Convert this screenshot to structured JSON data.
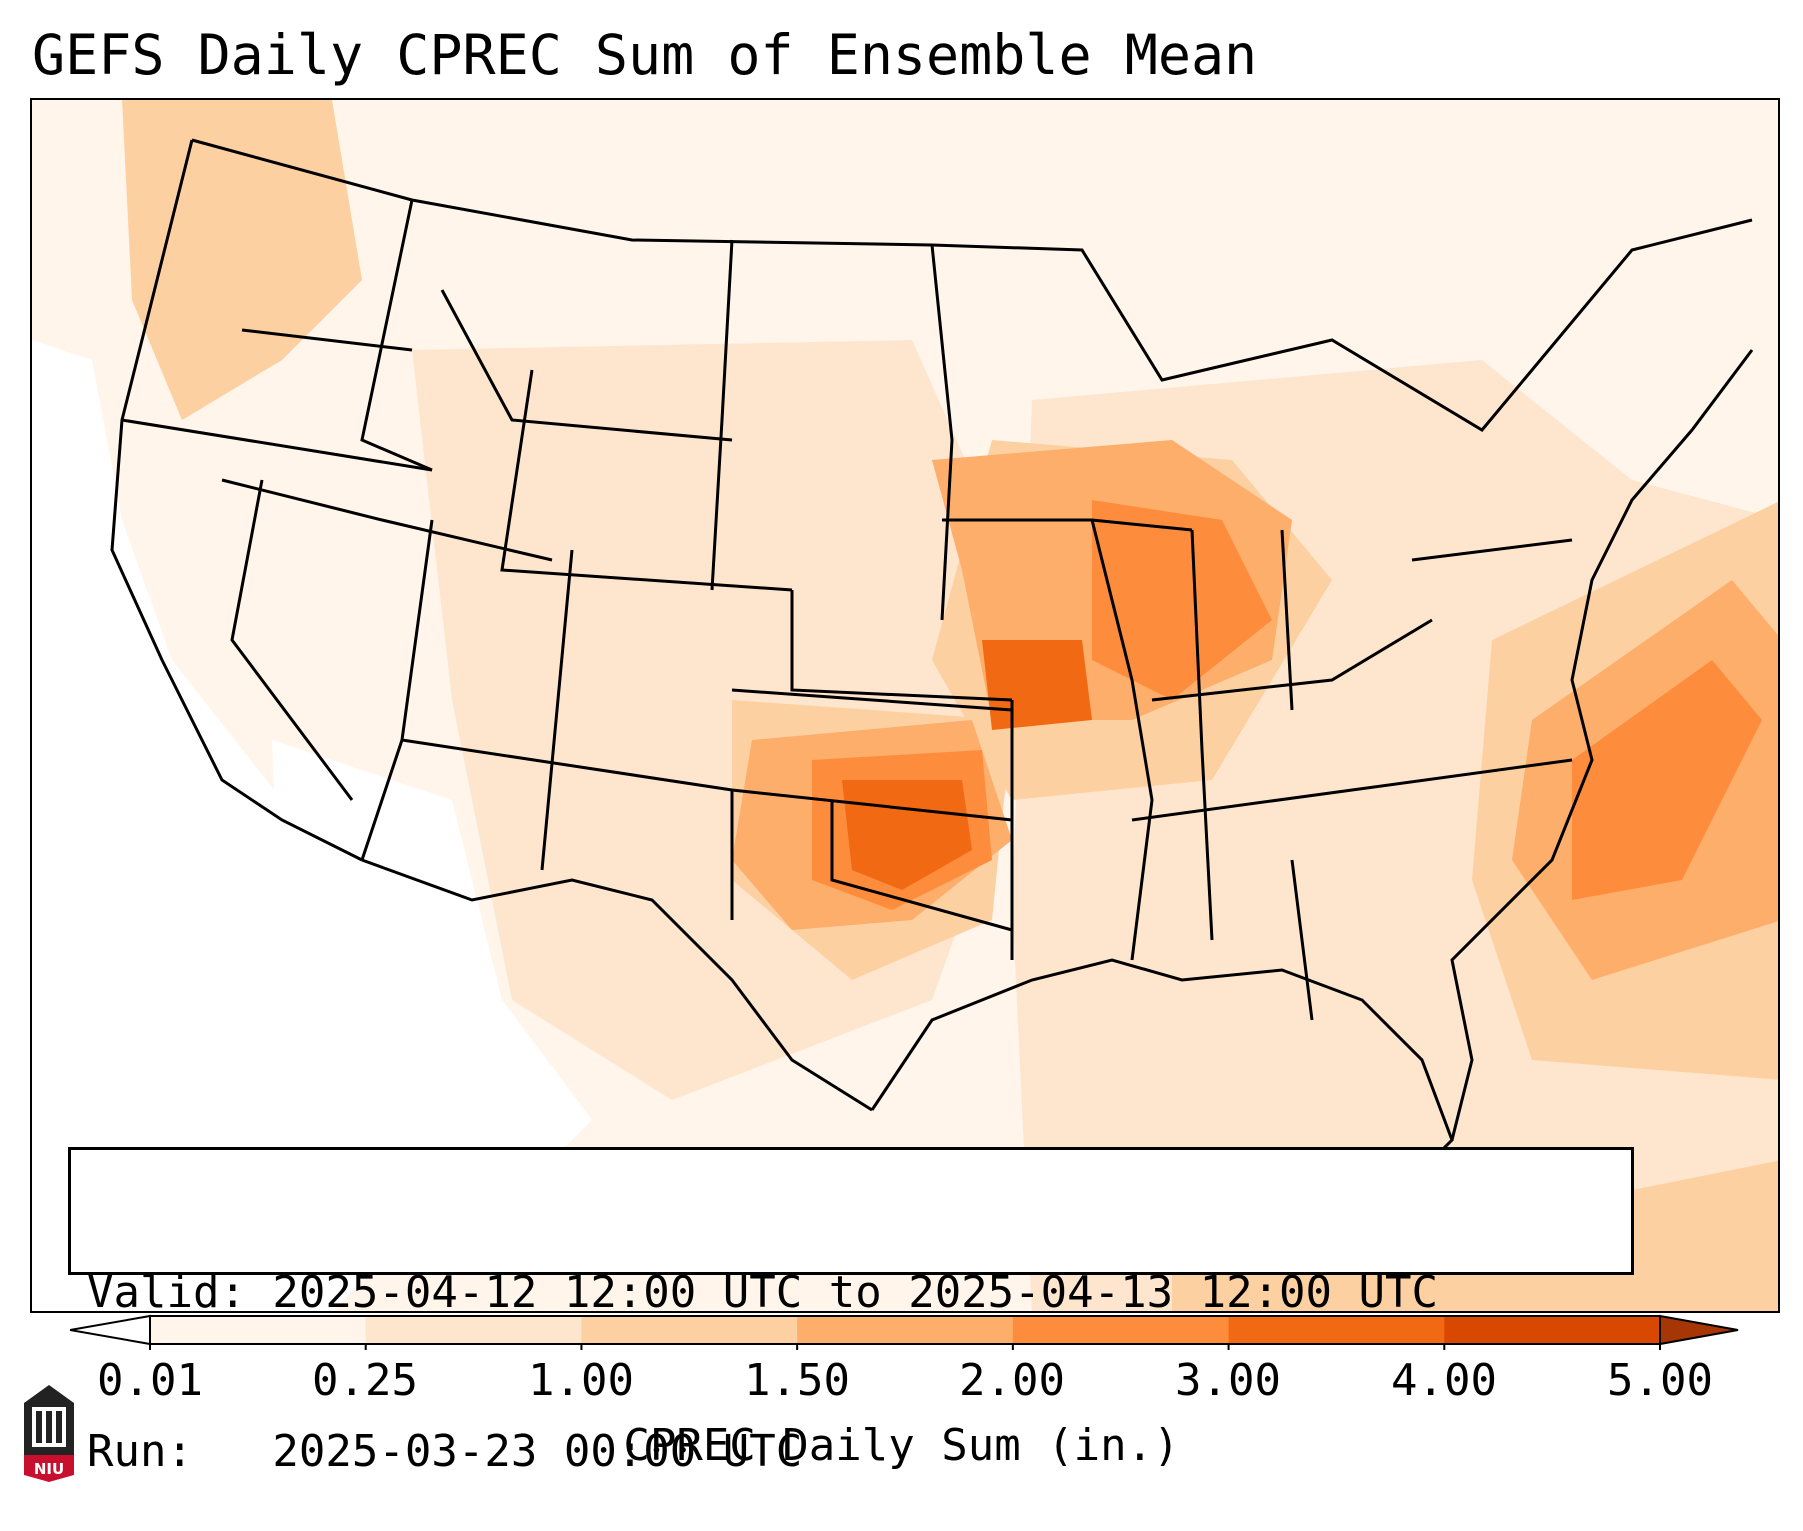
{
  "title": "GEFS Daily CPREC Sum of Ensemble Mean",
  "info": {
    "valid_line": "Valid: 2025-04-12 12:00 UTC to 2025-04-13 12:00 UTC",
    "run_line": "Run:   2025-03-23 00:00 UTC"
  },
  "colorbar": {
    "label": "CPREC Daily Sum (in.)",
    "ticks": [
      "0.01",
      "0.25",
      "1.00",
      "1.50",
      "2.00",
      "3.00",
      "4.00",
      "5.00"
    ],
    "colors": [
      "#fff5eb",
      "#fee6ce",
      "#fdd0a2",
      "#fdae6b",
      "#fd8d3c",
      "#f16913",
      "#d94801"
    ],
    "extend_low_color": "#ffffff",
    "extend_high_color": "#a63603"
  },
  "logo": {
    "text": "NIU",
    "icon": "niu-building-logo"
  },
  "colors": {
    "light": "#fff5eb",
    "pale": "#fee6ce",
    "tan": "#fdd0a2",
    "orange_light": "#fdae6b",
    "orange": "#fd8d3c",
    "orange_dark": "#f16913",
    "red_orange": "#d94801"
  }
}
